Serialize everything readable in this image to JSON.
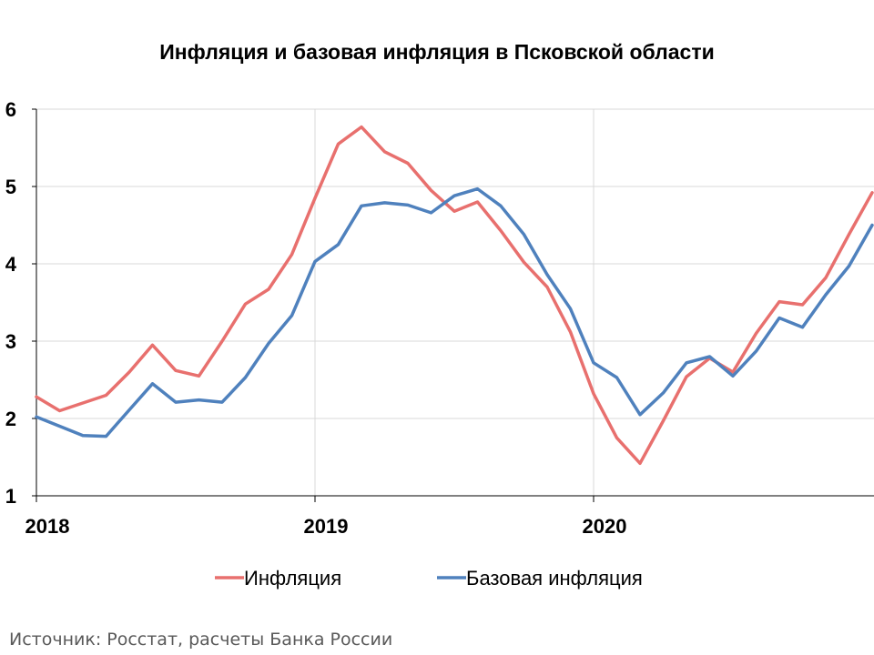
{
  "chart_data": {
    "type": "line",
    "title": "Инфляция и базовая инфляция в Псковской области",
    "xlabel": "",
    "ylabel": "",
    "x_tick_labels": [
      "2018",
      "2019",
      "2020"
    ],
    "y_tick_labels": [
      "1",
      "2",
      "3",
      "4",
      "5",
      "6"
    ],
    "ylim": [
      1,
      6
    ],
    "grid": true,
    "legend_position": "bottom",
    "x": [
      "2018-01",
      "2018-02",
      "2018-03",
      "2018-04",
      "2018-05",
      "2018-06",
      "2018-07",
      "2018-08",
      "2018-09",
      "2018-10",
      "2018-11",
      "2018-12",
      "2019-01",
      "2019-02",
      "2019-03",
      "2019-04",
      "2019-05",
      "2019-06",
      "2019-07",
      "2019-08",
      "2019-09",
      "2019-10",
      "2019-11",
      "2019-12",
      "2020-01",
      "2020-02",
      "2020-03",
      "2020-04",
      "2020-05",
      "2020-06",
      "2020-07",
      "2020-08",
      "2020-09",
      "2020-10",
      "2020-11",
      "2020-12",
      "2021-01"
    ],
    "series": [
      {
        "name": "Инфляция",
        "color": "#e8706e",
        "values": [
          2.28,
          2.1,
          2.2,
          2.3,
          2.6,
          2.95,
          2.62,
          2.55,
          3.0,
          3.48,
          3.67,
          4.12,
          4.85,
          5.55,
          5.77,
          5.45,
          5.3,
          4.95,
          4.68,
          4.8,
          4.43,
          4.02,
          3.7,
          3.12,
          2.32,
          1.75,
          1.42,
          1.97,
          2.54,
          2.78,
          2.6,
          3.1,
          3.51,
          3.47,
          3.82,
          4.38,
          4.92
        ]
      },
      {
        "name": "Базовая инфляция",
        "color": "#4f81bd",
        "values": [
          2.02,
          1.9,
          1.78,
          1.77,
          2.11,
          2.45,
          2.21,
          2.24,
          2.21,
          2.53,
          2.97,
          3.33,
          4.03,
          4.25,
          4.75,
          4.79,
          4.76,
          4.66,
          4.88,
          4.97,
          4.75,
          4.38,
          3.86,
          3.42,
          2.72,
          2.53,
          2.05,
          2.33,
          2.72,
          2.8,
          2.55,
          2.87,
          3.3,
          3.18,
          3.6,
          3.97,
          4.5
        ]
      }
    ]
  },
  "source_note": "Источник: Росстат, расчеты Банка России"
}
